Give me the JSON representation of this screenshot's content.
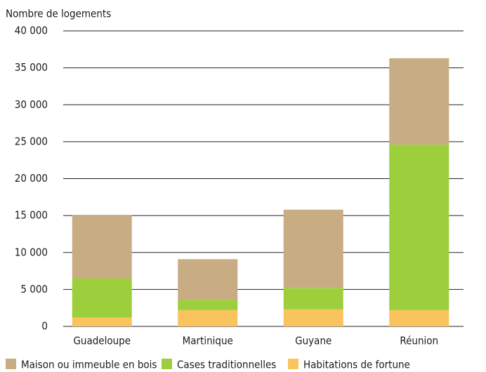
{
  "chart_data": {
    "type": "stacked_bar",
    "y_axis_label": "Nombre de logements",
    "categories": [
      "Guadeloupe",
      "Martinique",
      "Guyane",
      "Réunion"
    ],
    "series": [
      {
        "name": "Habitations de fortune",
        "color": "#f9c35e",
        "values": [
          1200,
          2200,
          2300,
          2200
        ]
      },
      {
        "name": "Cases traditionnelles",
        "color": "#9dcf3c",
        "values": [
          5300,
          1400,
          2900,
          22400
        ]
      },
      {
        "name": "Maison ou immeuble en bois",
        "color": "#c8ad84",
        "values": [
          8600,
          5500,
          10600,
          11700
        ]
      }
    ],
    "legend_order": [
      2,
      1,
      0
    ],
    "legend_position": "bottom",
    "ylim": [
      0,
      40000
    ],
    "yticks": [
      0,
      {
        "value": 5000,
        "label": "5 000"
      },
      {
        "value": 10000,
        "label": "10 000"
      },
      {
        "value": 15000,
        "label": "15 000"
      },
      {
        "value": 20000,
        "label": "20 000"
      },
      {
        "value": 25000,
        "label": "25 000"
      },
      {
        "value": 30000,
        "label": "30 000"
      },
      {
        "value": 35000,
        "label": "35 000"
      },
      {
        "value": 40000,
        "label": "40 000"
      }
    ],
    "grid": true
  }
}
